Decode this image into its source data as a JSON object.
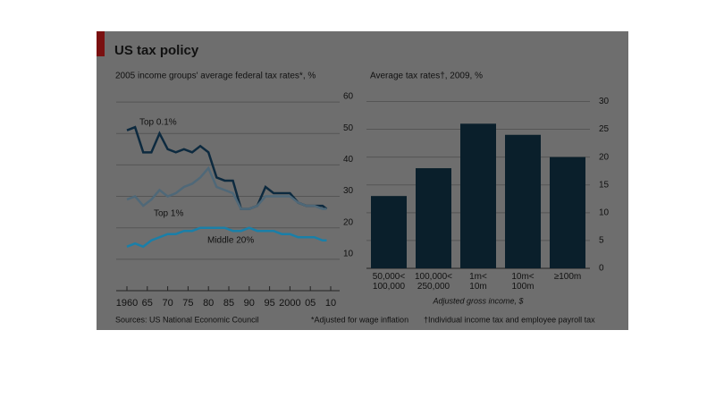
{
  "title": "US tax policy",
  "chart_data": [
    {
      "type": "line",
      "subtitle": "2005 income groups' average federal tax rates*, %",
      "x": [
        1960,
        1962,
        1964,
        1966,
        1968,
        1970,
        1972,
        1974,
        1976,
        1978,
        1980,
        1982,
        1984,
        1986,
        1988,
        1990,
        1992,
        1994,
        1996,
        1998,
        2000,
        2002,
        2004,
        2006,
        2008,
        2009
      ],
      "series": [
        {
          "name": "Top 0.1%",
          "color": "#0d2a3f",
          "values": [
            51,
            52,
            44,
            44,
            50,
            45,
            44,
            45,
            44,
            46,
            44,
            36,
            35,
            35,
            26,
            26,
            27,
            33,
            31,
            31,
            31,
            28,
            27,
            27,
            27,
            26
          ]
        },
        {
          "name": "Top 1%",
          "color": "#4f6878",
          "values": [
            29,
            30,
            27,
            29,
            32,
            30,
            31,
            33,
            34,
            36,
            39,
            33,
            32,
            31,
            26,
            26,
            27,
            30,
            30,
            30,
            30,
            28,
            27,
            27,
            26,
            26
          ]
        },
        {
          "name": "Middle 20%",
          "color": "#1a7fa8",
          "values": [
            14,
            15,
            14,
            16,
            17,
            18,
            18,
            19,
            19,
            20,
            20,
            20,
            20,
            19,
            19,
            20,
            19,
            19,
            19,
            18,
            18,
            17,
            17,
            17,
            16,
            16
          ]
        }
      ],
      "xlim": [
        1960,
        2010
      ],
      "xticks": [
        1960,
        {
          "value": 1965,
          "label": "65"
        },
        {
          "value": 1970,
          "label": "70"
        },
        {
          "value": 1975,
          "label": "75"
        },
        {
          "value": 1980,
          "label": "80"
        },
        {
          "value": 1985,
          "label": "85"
        },
        {
          "value": 1990,
          "label": "90"
        },
        {
          "value": 1995,
          "label": "95"
        },
        2000,
        {
          "value": 2005,
          "label": "05"
        },
        {
          "value": 2010,
          "label": "10"
        }
      ],
      "ylim": [
        0,
        64
      ],
      "yticks": [
        10,
        20,
        30,
        40,
        50,
        60
      ],
      "grid": true
    },
    {
      "type": "bar",
      "subtitle": "Average tax rates†, 2009, %",
      "categories": [
        "50,000<\n100,000",
        "100,000<\n250,000",
        "1m<\n10m",
        "10m<\n100m",
        "≥100m"
      ],
      "values": [
        13,
        18,
        26,
        24,
        20
      ],
      "color": "#0a1f2b",
      "xlabel": "Adjusted gross income, $",
      "ylim": [
        0,
        32
      ],
      "yticks": [
        0,
        5,
        10,
        15,
        20,
        25,
        30
      ],
      "grid": true
    }
  ],
  "footnotes": [
    "Sources: US National Economic Council",
    "*Adjusted for wage inflation",
    "†Individual income tax and employee payroll tax"
  ]
}
